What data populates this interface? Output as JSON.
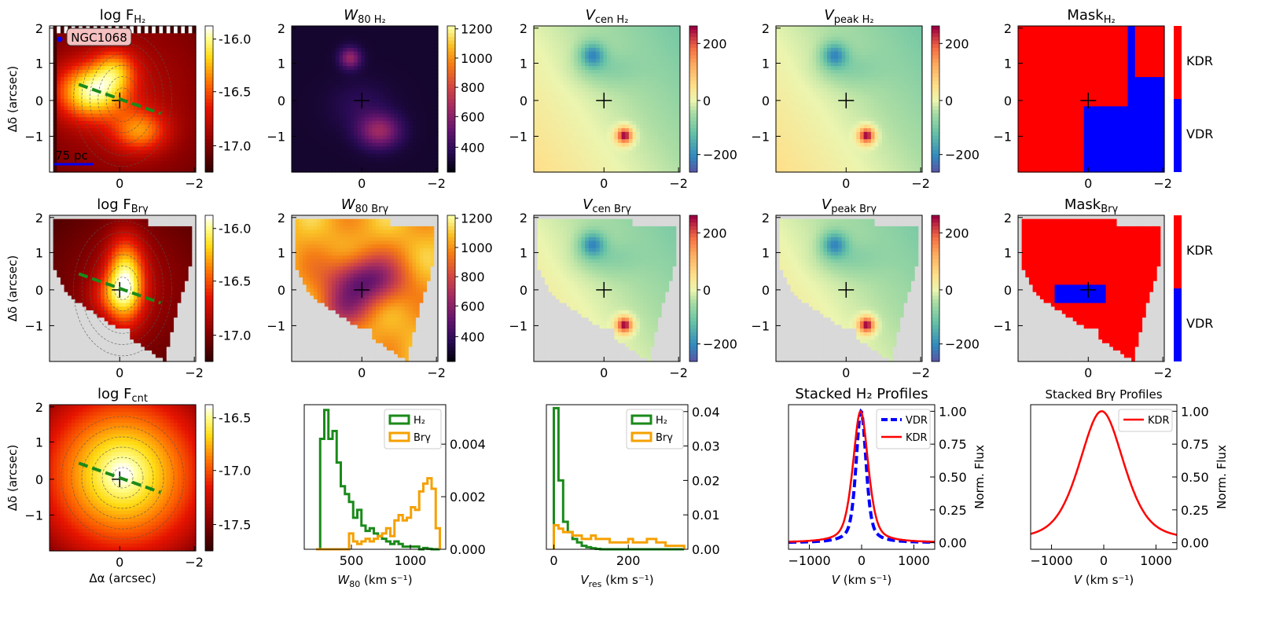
{
  "figure": {
    "galaxy_label": "NGC1068",
    "scale_label": "75 pc"
  },
  "maps": [
    {
      "id": "logF_H2",
      "title": "log F",
      "sub": "H₂",
      "title_style": "upright",
      "kind": "flux",
      "cmap": "hot",
      "cb_ticks": [
        "-16.0",
        "-16.5",
        "-17.0"
      ],
      "show_pa": true,
      "show_contours": true,
      "ylabel": "Δδ (arcsec)"
    },
    {
      "id": "W80_H2",
      "title": "W",
      "sub": "80 H₂",
      "title_style": "italic",
      "kind": "width_h2",
      "cmap": "inferno",
      "cb_ticks": [
        "1200",
        "1000",
        "800",
        "600",
        "400"
      ]
    },
    {
      "id": "Vcen_H2",
      "title": "V",
      "sub": "cen H₂",
      "title_style": "italic",
      "kind": "vel",
      "cmap": "spectral",
      "cb_ticks": [
        "200",
        "0",
        "−200"
      ]
    },
    {
      "id": "Vpeak_H2",
      "title": "V",
      "sub": "peak H₂",
      "title_style": "italic",
      "kind": "vel",
      "cmap": "spectral",
      "cb_ticks": [
        "200",
        "0",
        "−200"
      ]
    },
    {
      "id": "Mask_H2",
      "title": "Mask",
      "sub": "H₂",
      "title_style": "upright",
      "kind": "mask",
      "cmap": "binary",
      "cb_ticks": [
        "KDR",
        "VDR"
      ]
    },
    {
      "id": "logF_Brg",
      "title": "log F",
      "sub": "Brγ",
      "title_style": "upright",
      "kind": "flux_brg",
      "cmap": "hot",
      "cb_ticks": [
        "-16.0",
        "-16.5",
        "-17.0"
      ],
      "show_pa": true,
      "show_contours": true,
      "masked": true,
      "ylabel": "Δδ (arcsec)"
    },
    {
      "id": "W80_Brg",
      "title": "W",
      "sub": "80 Brγ",
      "title_style": "italic",
      "kind": "width_brg",
      "cmap": "inferno",
      "cb_ticks": [
        "1200",
        "1000",
        "800",
        "600",
        "400"
      ],
      "masked": true
    },
    {
      "id": "Vcen_Brg",
      "title": "V",
      "sub": "cen Brγ",
      "title_style": "italic",
      "kind": "vel",
      "cmap": "spectral",
      "cb_ticks": [
        "200",
        "0",
        "−200"
      ],
      "masked": true
    },
    {
      "id": "Vpeak_Brg",
      "title": "V",
      "sub": "peak Brγ",
      "title_style": "italic",
      "kind": "vel",
      "cmap": "spectral",
      "cb_ticks": [
        "200",
        "0",
        "−200"
      ],
      "masked": true
    },
    {
      "id": "Mask_Brg",
      "title": "Mask",
      "sub": "Brγ",
      "title_style": "upright",
      "kind": "mask_brg",
      "cmap": "binary",
      "cb_ticks": [
        "KDR",
        "VDR"
      ],
      "masked": true
    },
    {
      "id": "logF_cnt",
      "title": "log F",
      "sub": "cnt",
      "title_style": "upright",
      "kind": "cont",
      "cmap": "hot",
      "cb_ticks": [
        "-16.5",
        "-17.0",
        "-17.5"
      ],
      "show_pa": true,
      "show_contours": true,
      "ylabel": "Δδ (arcsec)",
      "xlabel": "Δα (arcsec)"
    }
  ],
  "map_axes": {
    "x_ticks": [
      "0",
      "−2"
    ],
    "y_ticks": [
      "2",
      "1",
      "0",
      "−1"
    ]
  },
  "chart_data": [
    {
      "id": "hist_w80",
      "type": "histogram",
      "xlabel": "W",
      "xlabel_sub": "80",
      "xlabel_unit": " (km s⁻¹)",
      "x_ticks": [
        500,
        1000
      ],
      "x_range": [
        100,
        1300
      ],
      "y_ticks": [
        "0.004",
        "0.002",
        "0.000"
      ],
      "y_range": [
        0,
        0.0055
      ],
      "series": [
        {
          "name": "H₂",
          "color": "#1a8a1a",
          "edges": [
            200,
            1250
          ],
          "values": [
            0.0,
            0.0042,
            0.0053,
            0.0042,
            0.0045,
            0.0033,
            0.0024,
            0.0021,
            0.0018,
            0.0012,
            0.0015,
            0.0009,
            0.0007,
            0.0008,
            0.0006,
            0.0005,
            0.0004,
            0.0003,
            0.0002,
            0.0003,
            0.0002,
            0.0001,
            0.0001,
            0.0001,
            0.0001,
            0.0,
            5e-05,
            2e-05,
            0.0,
            0.0
          ]
        },
        {
          "name": "Brγ",
          "color": "#f5a000",
          "edges": [
            200,
            1250
          ],
          "values": [
            0.0,
            0.0,
            0.0,
            0.0,
            0.0,
            0.0,
            0.0,
            0.0,
            0.0006,
            0.0003,
            0.0002,
            0.0003,
            0.0004,
            0.0003,
            0.0004,
            0.0005,
            0.0006,
            0.0008,
            0.0005,
            0.0011,
            0.0013,
            0.0011,
            0.0012,
            0.0016,
            0.0015,
            0.0022,
            0.0025,
            0.0027,
            0.0023,
            0.0008
          ]
        }
      ]
    },
    {
      "id": "hist_vres",
      "type": "histogram",
      "xlabel": "V",
      "xlabel_sub": "res",
      "xlabel_unit": " (km s⁻¹)",
      "x_ticks": [
        0,
        200
      ],
      "x_range": [
        -20,
        360
      ],
      "y_ticks": [
        "0.04",
        "0.03",
        "0.02",
        "0.01",
        "0.00"
      ],
      "y_range": [
        0,
        0.042
      ],
      "series": [
        {
          "name": "H₂",
          "color": "#1a8a1a",
          "edges": [
            0,
            350
          ],
          "values": [
            0.041,
            0.02,
            0.008,
            0.005,
            0.003,
            0.002,
            0.001,
            0.0006,
            0.0003,
            0.0001,
            0,
            0,
            0,
            0,
            0,
            0,
            0,
            0,
            0,
            0,
            0,
            0,
            0,
            0,
            0,
            0,
            0,
            0
          ]
        },
        {
          "name": "Brγ",
          "color": "#f5a000",
          "edges": [
            0,
            350
          ],
          "values": [
            0.007,
            0.006,
            0.005,
            0.005,
            0.004,
            0.004,
            0.003,
            0.003,
            0.004,
            0.003,
            0.003,
            0.003,
            0.002,
            0.002,
            0.002,
            0.002,
            0.003,
            0.002,
            0.002,
            0.002,
            0.003,
            0.003,
            0.002,
            0.002,
            0.001,
            0.001,
            0.001,
            0.001
          ]
        }
      ]
    },
    {
      "id": "prof_h2",
      "type": "line",
      "title": "Stacked H₂ Profiles",
      "xlabel": "V",
      "xlabel_unit": " (km s⁻¹)",
      "ylabel": "Norm. Flux",
      "x_ticks": [
        -1000,
        0,
        1000
      ],
      "x_tick_labels": [
        "−1000",
        "0",
        "1000"
      ],
      "x_range": [
        -1400,
        1400
      ],
      "y_ticks": [
        "1.00",
        "0.75",
        "0.50",
        "0.25",
        "0.00"
      ],
      "y_range": [
        -0.05,
        1.05
      ],
      "series": [
        {
          "name": "VDR",
          "color": "#0000ff",
          "dash": true,
          "center": -10,
          "sigma": 95,
          "gamma": 120
        },
        {
          "name": "KDR",
          "color": "#ff0000",
          "dash": false,
          "center": -20,
          "sigma": 150,
          "gamma": 170
        }
      ]
    },
    {
      "id": "prof_brg",
      "type": "line",
      "title": "Stacked Brγ Profiles",
      "xlabel": "V",
      "xlabel_unit": " (km s⁻¹)",
      "ylabel": "Norm. Flux",
      "x_ticks": [
        -1000,
        0,
        1000
      ],
      "x_tick_labels": [
        "−1000",
        "0",
        "1000"
      ],
      "x_range": [
        -1400,
        1400
      ],
      "y_ticks": [
        "1.00",
        "0.75",
        "0.50",
        "0.25",
        "0.00"
      ],
      "y_range": [
        -0.05,
        1.05
      ],
      "series": [
        {
          "name": "KDR",
          "color": "#ff0000",
          "dash": false,
          "center": -40,
          "sigma": 430,
          "gamma": 520
        }
      ]
    }
  ]
}
